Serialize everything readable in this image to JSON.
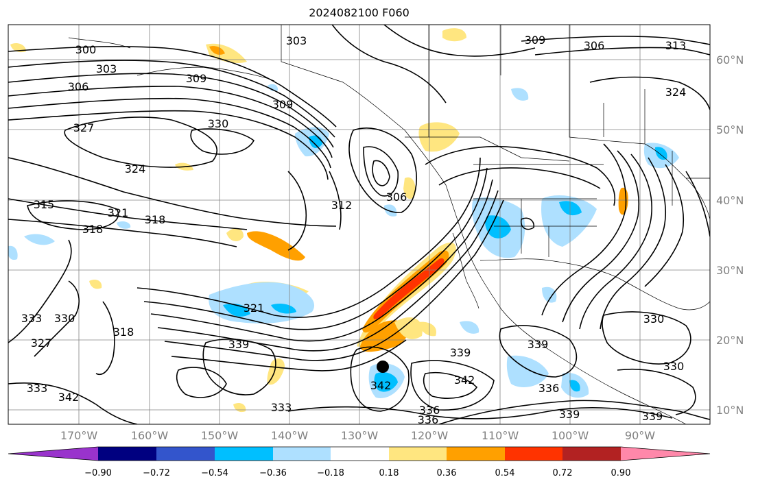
{
  "title": "2024082100 F060",
  "map": {
    "lon_labels": [
      "170°W",
      "160°W",
      "150°W",
      "140°W",
      "130°W",
      "120°W",
      "110°W",
      "100°W",
      "90°W"
    ],
    "lat_labels": [
      "60°N",
      "50°N",
      "40°N",
      "30°N",
      "20°N",
      "10°N"
    ],
    "contour_labels": [
      "300",
      "303",
      "306",
      "309",
      "327",
      "330",
      "324",
      "315",
      "321",
      "318",
      "318",
      "303",
      "309",
      "306",
      "313",
      "324",
      "309",
      "306",
      "312",
      "330",
      "321",
      "318",
      "333",
      "330",
      "327",
      "339",
      "342",
      "336",
      "339",
      "342",
      "339",
      "336",
      "339",
      "333",
      "336",
      "333",
      "330",
      "339",
      "342"
    ],
    "marker": "tropical-cyclone-center"
  },
  "colorbar": {
    "ticks": [
      "−0.90",
      "−0.72",
      "−0.54",
      "−0.36",
      "−0.18",
      "0.18",
      "0.36",
      "0.54",
      "0.72",
      "0.90"
    ],
    "colors": [
      "#9933cc",
      "#000080",
      "#3355cc",
      "#00bfff",
      "#aee0ff",
      "#ffffff",
      "#ffe680",
      "#ffa000",
      "#ff3300",
      "#b22222",
      "#ff88aa"
    ]
  }
}
